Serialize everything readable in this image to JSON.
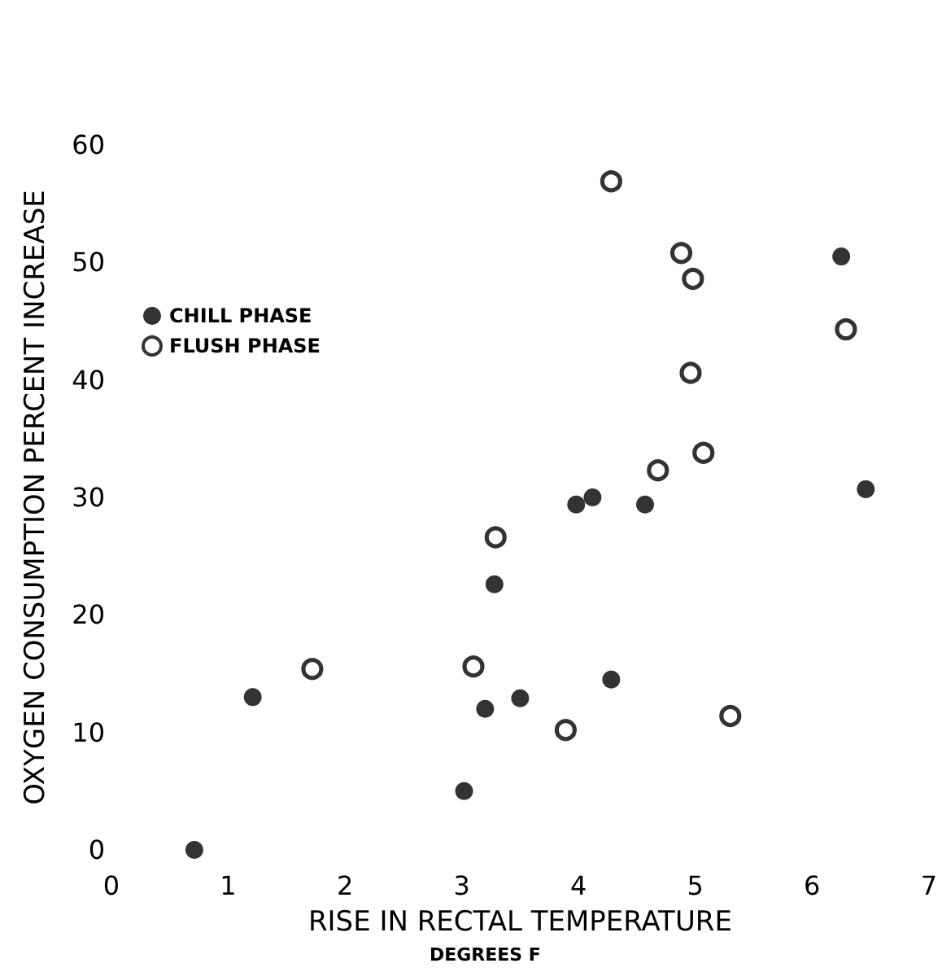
{
  "chart_data": {
    "type": "scatter",
    "xlabel": "RISE IN RECTAL TEMPERATURE",
    "ylabel": "OXYGEN CONSUMPTION PERCENT INCREASE",
    "annotations": [
      "DEGREES F"
    ],
    "series": [
      {
        "name": "CHILL PHASE",
        "color": "#000000",
        "x": [
          0.71,
          1.21,
          3.02,
          3.2,
          3.28,
          3.5,
          3.98,
          4.12,
          4.28,
          4.57,
          6.25,
          6.46
        ],
        "values": [
          0,
          13,
          5,
          12,
          22.6,
          12.9,
          29.4,
          30,
          14.5,
          29.4,
          50.5,
          30.7
        ]
      },
      {
        "name": "FLUSH PHASE",
        "color": "#000000",
        "x": [
          1.72,
          3.1,
          3.29,
          3.89,
          4.28,
          4.68,
          4.88,
          4.96,
          4.98,
          5.07,
          5.3,
          6.29
        ],
        "values": [
          15.4,
          15.6,
          26.6,
          10.2,
          56.9,
          32.3,
          50.8,
          40.6,
          48.6,
          33.8,
          11.4,
          44.3
        ]
      }
    ],
    "xlim": [
      0,
      7
    ],
    "xticks": [
      0,
      1,
      2,
      3,
      4,
      5,
      6,
      7
    ],
    "ylim": [
      0,
      60
    ],
    "yticks": [
      0,
      10,
      20,
      30,
      40,
      50,
      60
    ],
    "grid": false,
    "legend": "top left",
    "marker": "circle"
  }
}
